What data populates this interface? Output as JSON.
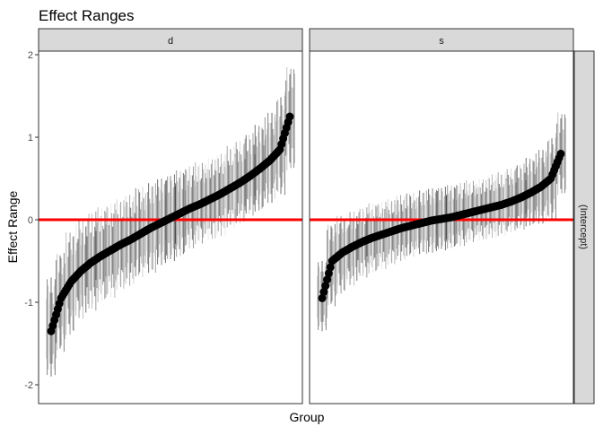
{
  "chart_data": {
    "type": "scatter",
    "title": "Effect Ranges",
    "xlabel": "Group",
    "ylabel": "Effect Range",
    "ylim": [
      -2.15,
      2.05
    ],
    "yticks": [
      "-2",
      "-1",
      "0",
      "1",
      "2"
    ],
    "row_strip": "(Intercept)",
    "reference_line": {
      "y": 0,
      "color": "#ff0000"
    },
    "point_color": "#000000",
    "grid": false,
    "panels": [
      {
        "label": "d",
        "estimate": [
          -1.35,
          -0.95,
          -0.75,
          -0.62,
          -0.52,
          -0.44,
          -0.37,
          -0.3,
          -0.24,
          -0.17,
          -0.1,
          -0.04,
          0.02,
          0.08,
          0.14,
          0.19,
          0.25,
          0.31,
          0.38,
          0.45,
          0.53,
          0.62,
          0.72,
          0.85,
          1.25
        ],
        "lower": [
          -1.9,
          -1.6,
          -1.4,
          -1.2,
          -1.1,
          -1.0,
          -0.95,
          -0.85,
          -0.8,
          -0.7,
          -0.65,
          -0.55,
          -0.5,
          -0.45,
          -0.35,
          -0.3,
          -0.25,
          -0.2,
          -0.1,
          -0.05,
          0.05,
          0.1,
          0.2,
          0.3,
          0.6
        ],
        "upper": [
          -0.7,
          -0.4,
          -0.15,
          0.0,
          0.1,
          0.15,
          0.2,
          0.25,
          0.3,
          0.4,
          0.45,
          0.5,
          0.55,
          0.6,
          0.65,
          0.7,
          0.75,
          0.8,
          0.9,
          0.95,
          1.05,
          1.15,
          1.3,
          1.5,
          1.85
        ]
      },
      {
        "label": "s",
        "estimate": [
          -0.95,
          -0.5,
          -0.4,
          -0.33,
          -0.27,
          -0.22,
          -0.18,
          -0.14,
          -0.1,
          -0.07,
          -0.04,
          -0.01,
          0.01,
          0.03,
          0.06,
          0.09,
          0.12,
          0.15,
          0.18,
          0.22,
          0.27,
          0.33,
          0.4,
          0.5,
          0.8
        ],
        "lower": [
          -1.35,
          -1.05,
          -0.9,
          -0.8,
          -0.7,
          -0.65,
          -0.6,
          -0.55,
          -0.5,
          -0.45,
          -0.42,
          -0.4,
          -0.37,
          -0.35,
          -0.32,
          -0.28,
          -0.25,
          -0.22,
          -0.2,
          -0.15,
          -0.12,
          -0.08,
          -0.05,
          0.0,
          0.3
        ],
        "upper": [
          -0.5,
          -0.05,
          0.05,
          0.1,
          0.15,
          0.2,
          0.22,
          0.25,
          0.3,
          0.33,
          0.36,
          0.38,
          0.4,
          0.42,
          0.45,
          0.48,
          0.5,
          0.55,
          0.58,
          0.62,
          0.68,
          0.75,
          0.85,
          1.0,
          1.3
        ]
      }
    ]
  }
}
